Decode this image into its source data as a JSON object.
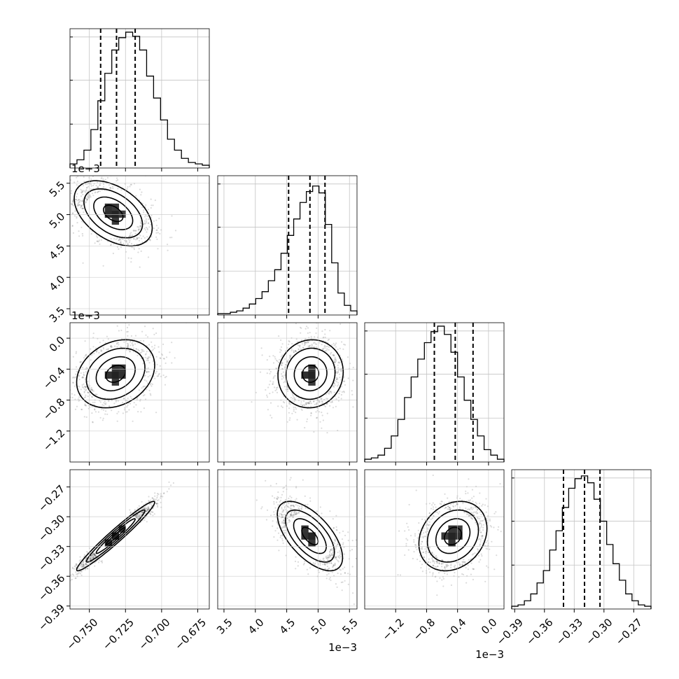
{
  "chart_data": {
    "type": "corner",
    "grid": true,
    "variables": [
      {
        "range": [
          -0.7634,
          -0.667
        ],
        "ticks": [
          -0.75,
          -0.725,
          -0.7,
          -0.675
        ],
        "tick_labels": [
          "−0.750",
          "−0.725",
          "−0.700",
          "−0.675"
        ],
        "offset": "",
        "quantiles": [
          -0.7422,
          -0.7312,
          -0.7183
        ]
      },
      {
        "range": [
          3.4,
          5.62
        ],
        "ticks": [
          3.5,
          4.0,
          4.5,
          5.0,
          5.5
        ],
        "tick_labels": [
          "3.5",
          "4.0",
          "4.5",
          "5.0",
          "5.5"
        ],
        "offset": "1e−3",
        "quantiles": [
          4.53,
          4.87,
          5.11
        ]
      },
      {
        "range": [
          -1.6,
          0.2
        ],
        "ticks": [
          -1.2,
          -0.8,
          -0.4,
          0.0
        ],
        "tick_labels": [
          "−1.2",
          "−0.8",
          "−0.4",
          "0.0"
        ],
        "offset": "1e−3",
        "quantiles": [
          -0.7,
          -0.43,
          -0.2
        ]
      },
      {
        "range": [
          -0.393,
          -0.2526
        ],
        "ticks": [
          -0.39,
          -0.36,
          -0.33,
          -0.3,
          -0.27
        ],
        "tick_labels": [
          "−0.39",
          "−0.36",
          "−0.33",
          "−0.30",
          "−0.27"
        ],
        "offset": "",
        "quantiles": [
          -0.3408,
          -0.3196,
          -0.304
        ]
      }
    ],
    "histograms": [
      [
        0.03,
        0.06,
        0.13,
        0.28,
        0.49,
        0.69,
        0.86,
        0.95,
        0.99,
        0.96,
        0.86,
        0.67,
        0.51,
        0.35,
        0.21,
        0.13,
        0.07,
        0.04,
        0.03,
        0.02
      ],
      [
        0.01,
        0.01,
        0.02,
        0.03,
        0.05,
        0.08,
        0.12,
        0.17,
        0.25,
        0.33,
        0.45,
        0.58,
        0.7,
        0.82,
        0.9,
        0.94,
        0.89,
        0.66,
        0.38,
        0.16,
        0.07,
        0.03
      ],
      [
        0.02,
        0.03,
        0.05,
        0.1,
        0.19,
        0.31,
        0.47,
        0.62,
        0.75,
        0.87,
        0.95,
        0.99,
        0.93,
        0.8,
        0.62,
        0.45,
        0.31,
        0.19,
        0.09,
        0.05,
        0.02
      ],
      [
        0.02,
        0.03,
        0.06,
        0.11,
        0.19,
        0.28,
        0.43,
        0.57,
        0.74,
        0.88,
        0.95,
        0.97,
        0.92,
        0.8,
        0.64,
        0.47,
        0.33,
        0.21,
        0.11,
        0.06,
        0.03,
        0.02
      ]
    ],
    "pairs": [
      {
        "row": 1,
        "col": 0,
        "center": [
          -0.7335,
          5.02
        ],
        "spread": [
          0.0135,
          0.26
        ],
        "rho": -0.45
      },
      {
        "row": 2,
        "col": 0,
        "center": [
          -0.7318,
          -0.46
        ],
        "spread": [
          0.0135,
          0.22
        ],
        "rho": 0.25
      },
      {
        "row": 2,
        "col": 1,
        "center": [
          4.88,
          -0.46
        ],
        "spread": [
          0.26,
          0.22
        ],
        "rho": 0.05
      },
      {
        "row": 3,
        "col": 0,
        "center": [
          -0.7318,
          -0.3195
        ],
        "spread": [
          0.0135,
          0.0175
        ],
        "rho": 0.97
      },
      {
        "row": 3,
        "col": 1,
        "center": [
          4.87,
          -0.3195
        ],
        "spread": [
          0.26,
          0.0175
        ],
        "rho": -0.62
      },
      {
        "row": 3,
        "col": 2,
        "center": [
          -0.46,
          -0.3195
        ],
        "spread": [
          0.22,
          0.0175
        ],
        "rho": 0.22
      }
    ]
  }
}
